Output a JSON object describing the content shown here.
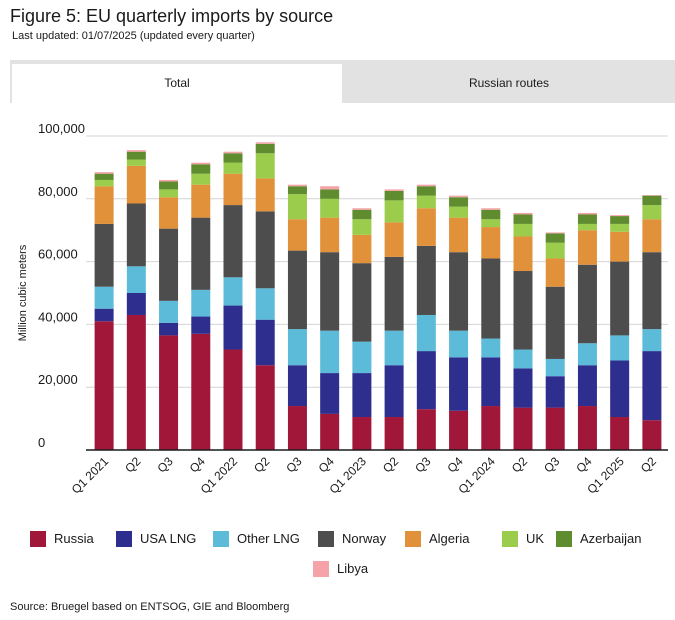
{
  "header": {
    "title": "Figure 5: EU quarterly imports by source",
    "subtitle": "Last updated: 01/07/2025 (updated every quarter)"
  },
  "tabs": [
    {
      "label": "Total",
      "active": true
    },
    {
      "label": "Russian routes",
      "active": false
    }
  ],
  "footer": {
    "source": "Source: Bruegel based on ENTSOG, GIE and Bloomberg"
  },
  "chart_data": {
    "type": "bar",
    "stacked": true,
    "title": "Figure 5: EU quarterly imports by source",
    "xlabel": "",
    "ylabel": "Million cubic meters",
    "ylim": [
      0,
      100000
    ],
    "yticks": [
      0,
      20000,
      40000,
      60000,
      80000,
      100000
    ],
    "ytick_labels": [
      "0",
      "20,000",
      "40,000",
      "60,000",
      "80,000",
      "100,000"
    ],
    "grid": true,
    "legend_position": "bottom",
    "categories": [
      "Q1 2021",
      "Q2",
      "Q3",
      "Q4",
      "Q1 2022",
      "Q2",
      "Q3",
      "Q4",
      "Q1 2023",
      "Q2",
      "Q3",
      "Q4",
      "Q1 2024",
      "Q2",
      "Q3",
      "Q4",
      "Q1 2025",
      "Q2"
    ],
    "series": [
      {
        "name": "Russia",
        "color": "#a0173a",
        "values": [
          41000,
          43000,
          36500,
          37000,
          32000,
          27000,
          14000,
          11500,
          10500,
          10500,
          13000,
          12500,
          14000,
          13500,
          13500,
          14000,
          10500,
          9500
        ]
      },
      {
        "name": "USA LNG",
        "color": "#2e2e8e",
        "values": [
          4000,
          7000,
          4000,
          5500,
          14000,
          14500,
          13000,
          13000,
          14000,
          16500,
          18500,
          17000,
          15500,
          12500,
          10000,
          13000,
          18000,
          22000
        ]
      },
      {
        "name": "Other LNG",
        "color": "#5bbbd8",
        "values": [
          7000,
          8500,
          7000,
          8500,
          9000,
          10000,
          11500,
          13500,
          10000,
          11000,
          11500,
          8500,
          6000,
          6000,
          5500,
          7000,
          8000,
          7000
        ]
      },
      {
        "name": "Norway",
        "color": "#4d4d4d",
        "values": [
          20000,
          20000,
          23000,
          23000,
          23000,
          24500,
          25000,
          25000,
          25000,
          23500,
          22000,
          25000,
          25500,
          25000,
          23000,
          25000,
          23500,
          24500
        ]
      },
      {
        "name": "Algeria",
        "color": "#e0913a",
        "values": [
          12000,
          12000,
          10000,
          10500,
          10000,
          10500,
          10000,
          11000,
          9000,
          11000,
          12000,
          11000,
          10000,
          11000,
          9000,
          11000,
          9500,
          10500
        ]
      },
      {
        "name": "UK",
        "color": "#9ccc4c",
        "values": [
          2000,
          2000,
          2500,
          3500,
          3500,
          8000,
          8000,
          6000,
          5000,
          7000,
          4000,
          3500,
          2500,
          4000,
          5000,
          2000,
          2500,
          4500
        ]
      },
      {
        "name": "Azerbaijan",
        "color": "#5e8c2e",
        "values": [
          2000,
          2500,
          2500,
          3000,
          3000,
          3000,
          2500,
          3000,
          3000,
          3000,
          3000,
          3000,
          3000,
          3000,
          3000,
          3000,
          2500,
          3000
        ]
      },
      {
        "name": "Libya",
        "color": "#f5a3a8",
        "values": [
          500,
          500,
          500,
          500,
          500,
          500,
          500,
          1000,
          500,
          500,
          500,
          500,
          500,
          500,
          300,
          500,
          300,
          200
        ]
      }
    ]
  }
}
